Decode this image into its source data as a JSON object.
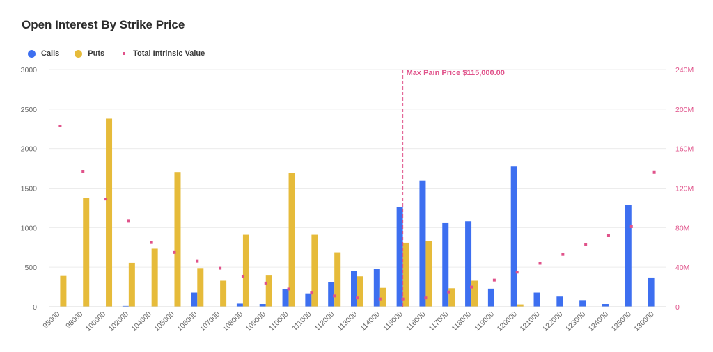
{
  "chart_data": {
    "type": "bar",
    "title": "Open Interest By Strike Price",
    "categories": [
      "95000",
      "98000",
      "100000",
      "102000",
      "104000",
      "105000",
      "106000",
      "107000",
      "108000",
      "109000",
      "110000",
      "111000",
      "112000",
      "113000",
      "114000",
      "115000",
      "116000",
      "117000",
      "118000",
      "119000",
      "120000",
      "121000",
      "122000",
      "123000",
      "124000",
      "125000",
      "130000"
    ],
    "series": [
      {
        "name": "Calls",
        "color": "#3d6ff0",
        "axis": "left",
        "values": [
          0,
          0,
          0,
          10,
          0,
          0,
          180,
          0,
          40,
          35,
          220,
          170,
          310,
          450,
          480,
          1265,
          1595,
          1065,
          1080,
          230,
          1775,
          180,
          130,
          85,
          35,
          1285,
          370
        ]
      },
      {
        "name": "Puts",
        "color": "#e6bb3a",
        "axis": "left",
        "values": [
          390,
          1375,
          2380,
          555,
          735,
          1705,
          490,
          330,
          910,
          395,
          1695,
          910,
          690,
          385,
          240,
          810,
          835,
          235,
          330,
          0,
          30,
          0,
          0,
          0,
          0,
          0,
          0
        ]
      },
      {
        "name": "Total Intrinsic Value",
        "color": "#e0528a",
        "axis": "right",
        "marker": "square",
        "values": [
          183,
          137,
          109,
          87,
          65,
          55,
          46,
          39,
          31,
          24,
          18,
          14,
          11,
          9,
          8,
          8,
          9,
          15,
          20,
          27,
          35,
          44,
          53,
          63,
          72,
          81,
          136
        ]
      }
    ],
    "y_left": {
      "ticks": [
        "0",
        "500",
        "1000",
        "1500",
        "2000",
        "2500",
        "3000"
      ],
      "ylim": [
        0,
        3000
      ]
    },
    "y_right": {
      "ticks": [
        "0",
        "40M",
        "80M",
        "120M",
        "160M",
        "200M",
        "240M"
      ],
      "ylim": [
        0,
        240
      ]
    },
    "annotation": {
      "label": "Max Pain Price $115,000.00",
      "category": "115000"
    },
    "grid": true,
    "legend_position": "top-left"
  }
}
